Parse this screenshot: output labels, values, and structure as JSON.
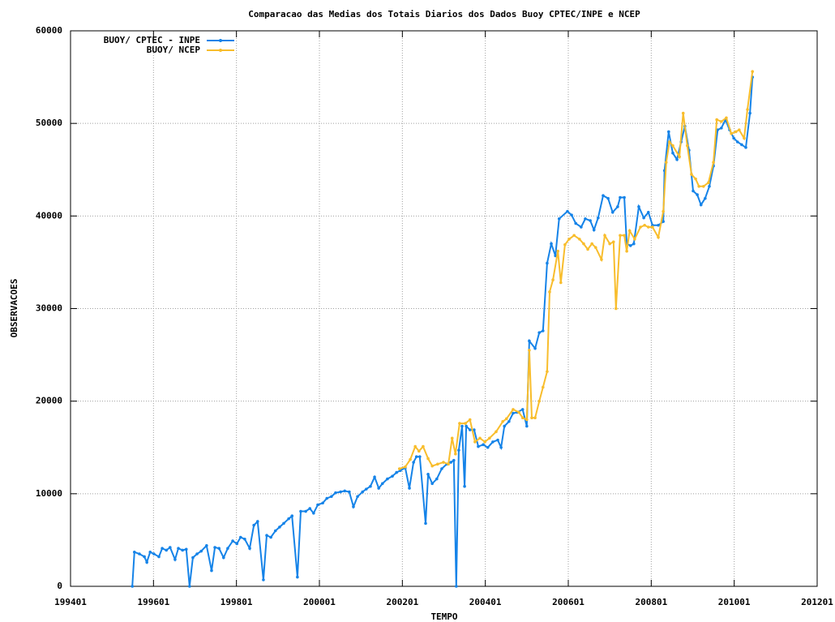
{
  "chart_data": {
    "type": "line",
    "title": "Comparacao das Medias dos Totais Diarios dos Dados Buoy CPTEC/INPE e NCEP",
    "xlabel": "TEMPO",
    "ylabel": "OBSERVACOES",
    "xlim": [
      1994,
      2012
    ],
    "xticks": [
      {
        "value": 1994,
        "label": "199401"
      },
      {
        "value": 1996,
        "label": "199601"
      },
      {
        "value": 1998,
        "label": "199801"
      },
      {
        "value": 2000,
        "label": "200001"
      },
      {
        "value": 2002,
        "label": "200201"
      },
      {
        "value": 2004,
        "label": "200401"
      },
      {
        "value": 2006,
        "label": "200601"
      },
      {
        "value": 2008,
        "label": "200801"
      },
      {
        "value": 2010,
        "label": "201001"
      },
      {
        "value": 2012,
        "label": "201201"
      }
    ],
    "ylim": [
      0,
      60000
    ],
    "yticks": [
      0,
      10000,
      20000,
      30000,
      40000,
      50000,
      60000
    ],
    "grid": true,
    "legend": "upper left",
    "series": [
      {
        "name": "BUOY/ CPTEC - INPE",
        "color": "#1583e8",
        "x": [
          1995.49,
          1995.54,
          1995.66,
          1995.78,
          1995.84,
          1995.92,
          1996.01,
          1996.13,
          1996.21,
          1996.31,
          1996.4,
          1996.52,
          1996.6,
          1996.7,
          1996.79,
          1996.87,
          1996.95,
          1997.05,
          1997.15,
          1997.28,
          1997.4,
          1997.48,
          1997.58,
          1997.69,
          1997.79,
          1997.91,
          1998.01,
          1998.1,
          1998.2,
          1998.32,
          1998.42,
          1998.51,
          1998.65,
          1998.73,
          1998.83,
          1998.94,
          1999.04,
          1999.14,
          1999.26,
          1999.34,
          1999.47,
          1999.55,
          1999.67,
          1999.77,
          1999.86,
          1999.96,
          2000.08,
          2000.18,
          2000.29,
          2000.39,
          2000.51,
          2000.61,
          2000.72,
          2000.82,
          2000.92,
          2001.04,
          2001.13,
          2001.23,
          2001.33,
          2001.43,
          2001.52,
          2001.64,
          2001.76,
          2001.86,
          2001.95,
          2002.07,
          2002.17,
          2002.27,
          2002.34,
          2002.42,
          2002.56,
          2002.62,
          2002.72,
          2002.83,
          2002.95,
          2003.07,
          2003.17,
          2003.24,
          2003.3,
          2003.36,
          2003.44,
          2003.5,
          2003.54,
          2003.63,
          2003.73,
          2003.83,
          2003.95,
          2004.06,
          2004.18,
          2004.3,
          2004.38,
          2004.46,
          2004.57,
          2004.67,
          2004.77,
          2004.9,
          2005.0,
          2005.06,
          2005.2,
          2005.3,
          2005.39,
          2005.49,
          2005.59,
          2005.69,
          2005.78,
          2005.98,
          2006.08,
          2006.18,
          2006.31,
          2006.41,
          2006.53,
          2006.62,
          2006.72,
          2006.84,
          2006.96,
          2007.07,
          2007.19,
          2007.25,
          2007.35,
          2007.41,
          2007.5,
          2007.58,
          2007.7,
          2007.82,
          2007.93,
          2008.03,
          2008.17,
          2008.29,
          2008.32,
          2008.42,
          2008.52,
          2008.62,
          2008.72,
          2008.81,
          2008.91,
          2009.01,
          2009.11,
          2009.2,
          2009.3,
          2009.4,
          2009.5,
          2009.6,
          2009.69,
          2009.79,
          2009.89,
          2009.99,
          2010.08,
          2010.18,
          2010.28,
          2010.38,
          2010.44
        ],
        "values": [
          0,
          3700,
          3500,
          3200,
          2600,
          3700,
          3500,
          3200,
          4100,
          3900,
          4200,
          2900,
          4100,
          3900,
          4000,
          0,
          3100,
          3500,
          3800,
          4400,
          1700,
          4200,
          4100,
          3100,
          4100,
          4900,
          4600,
          5300,
          5100,
          4100,
          6600,
          7000,
          700,
          5500,
          5300,
          6000,
          6400,
          6800,
          7300,
          7600,
          1000,
          8100,
          8100,
          8400,
          7900,
          8800,
          9000,
          9500,
          9700,
          10100,
          10200,
          10300,
          10200,
          8600,
          9700,
          10200,
          10500,
          10800,
          11800,
          10600,
          11100,
          11600,
          11900,
          12300,
          12500,
          12800,
          10600,
          13400,
          14000,
          14000,
          6800,
          12100,
          11100,
          11600,
          12700,
          13200,
          13400,
          13600,
          0,
          14700,
          17300,
          10800,
          17300,
          16900,
          16900,
          15100,
          15300,
          15000,
          15600,
          15800,
          15000,
          17300,
          17800,
          18700,
          18800,
          19100,
          17300,
          26500,
          25700,
          27400,
          27600,
          34900,
          37000,
          35700,
          39700,
          40500,
          40100,
          39200,
          38800,
          39700,
          39500,
          38500,
          39800,
          42200,
          41900,
          40400,
          41000,
          42000,
          42000,
          37000,
          36800,
          37000,
          41000,
          39800,
          40400,
          39000,
          39000,
          39400,
          44900,
          49100,
          46800,
          46100,
          48000,
          49700,
          47100,
          42700,
          42300,
          41200,
          41900,
          43200,
          45400,
          49300,
          49500,
          50400,
          49300,
          48400,
          48000,
          47700,
          47400,
          51100,
          55000
        ]
      },
      {
        "name": "BUOY/ NCEP",
        "color": "#f8bd2c",
        "x": [
          2001.93,
          2002.07,
          2002.19,
          2002.31,
          2002.4,
          2002.5,
          2002.62,
          2002.72,
          2002.85,
          2002.99,
          2003.11,
          2003.2,
          2003.28,
          2003.38,
          2003.52,
          2003.63,
          2003.75,
          2003.87,
          2003.99,
          2004.1,
          2004.26,
          2004.42,
          2004.51,
          2004.67,
          2004.81,
          2004.9,
          2005.0,
          2005.06,
          2005.12,
          2005.2,
          2005.3,
          2005.39,
          2005.49,
          2005.55,
          2005.63,
          2005.75,
          2005.82,
          2005.92,
          2006.02,
          2006.14,
          2006.27,
          2006.37,
          2006.47,
          2006.57,
          2006.66,
          2006.8,
          2006.88,
          2007.0,
          2007.09,
          2007.15,
          2007.25,
          2007.35,
          2007.41,
          2007.48,
          2007.6,
          2007.74,
          2007.84,
          2007.93,
          2008.03,
          2008.17,
          2008.29,
          2008.36,
          2008.44,
          2008.52,
          2008.68,
          2008.77,
          2008.87,
          2008.97,
          2009.07,
          2009.15,
          2009.26,
          2009.38,
          2009.5,
          2009.58,
          2009.69,
          2009.81,
          2009.93,
          2010.04,
          2010.12,
          2010.24,
          2010.32,
          2010.44
        ],
        "values": [
          12700,
          12900,
          13700,
          15100,
          14600,
          15100,
          13800,
          13000,
          13200,
          13400,
          13200,
          16000,
          14300,
          17600,
          17600,
          18000,
          15600,
          16000,
          15600,
          16000,
          16700,
          17800,
          18100,
          19100,
          18800,
          18200,
          18000,
          25500,
          18200,
          18200,
          20000,
          21500,
          23200,
          31800,
          33100,
          36200,
          32800,
          36900,
          37500,
          37900,
          37500,
          37000,
          36400,
          37000,
          36600,
          35300,
          37900,
          37000,
          37200,
          30000,
          37900,
          37900,
          36200,
          38400,
          37500,
          38800,
          39000,
          38800,
          38800,
          37700,
          40500,
          45800,
          48000,
          47600,
          46400,
          51100,
          47600,
          44500,
          44000,
          43200,
          43200,
          43600,
          45800,
          50400,
          50200,
          50600,
          48900,
          49100,
          49300,
          48400,
          51500,
          55600
        ]
      }
    ]
  }
}
